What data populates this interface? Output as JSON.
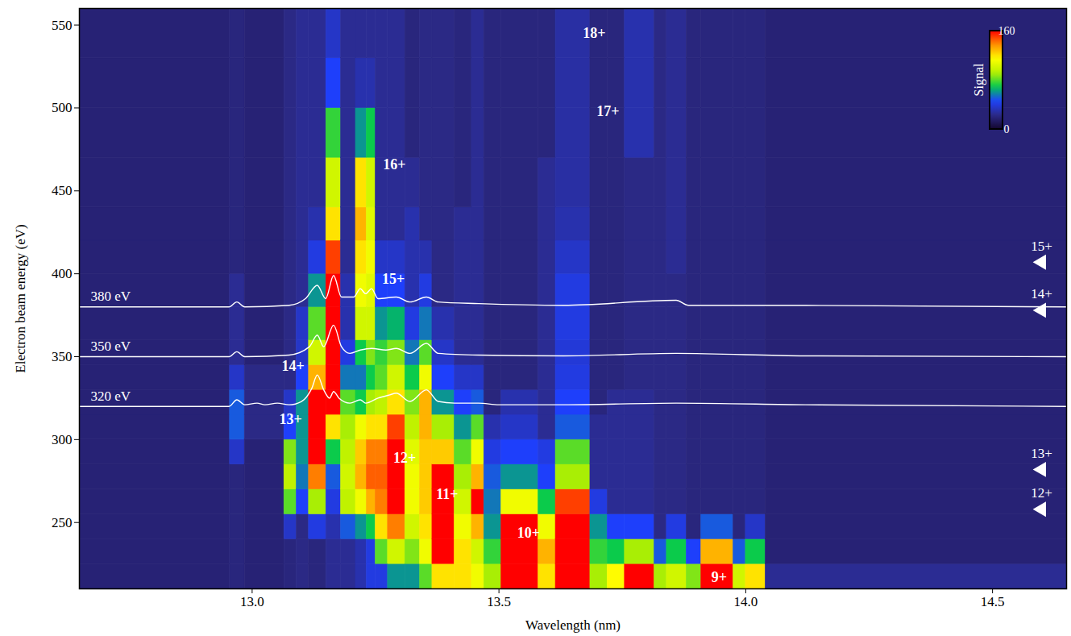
{
  "chart_data": {
    "type": "heatmap",
    "xlabel": "Wavelength (nm)",
    "ylabel": "Electron beam energy (eV)",
    "xlim": [
      12.65,
      14.65
    ],
    "ylim": [
      210,
      560
    ],
    "xticks": [
      {
        "value": 13,
        "label": "13.0"
      },
      13.5,
      {
        "value": 14,
        "label": "14.0"
      },
      14.5
    ],
    "yticks": [
      250,
      300,
      350,
      400,
      450,
      500,
      550
    ],
    "x_edges": [
      12.65,
      12.955,
      12.985,
      13.065,
      13.09,
      13.115,
      13.15,
      13.18,
      13.21,
      13.232,
      13.25,
      13.275,
      13.31,
      13.34,
      13.365,
      13.41,
      13.445,
      13.47,
      13.505,
      13.58,
      13.615,
      13.685,
      13.72,
      13.755,
      13.815,
      13.84,
      13.88,
      13.91,
      13.975,
      14.0,
      14.04,
      14.65
    ],
    "y_edges": [
      210,
      225,
      240,
      255,
      270,
      285,
      300,
      315,
      330,
      345,
      360,
      380,
      400,
      420,
      440,
      470,
      500,
      530,
      560
    ],
    "values": [
      [
        18,
        18,
        18,
        18,
        18,
        18,
        18,
        18,
        18,
        18,
        18,
        18,
        18,
        18,
        18,
        18,
        18,
        18
      ],
      [
        20,
        20,
        20,
        20,
        20,
        35,
        50,
        50,
        35,
        25,
        25,
        25,
        20,
        20,
        20,
        20,
        20,
        20
      ],
      [
        18,
        18,
        18,
        18,
        18,
        18,
        22,
        22,
        22,
        18,
        18,
        18,
        18,
        18,
        18,
        18,
        18,
        18
      ],
      [
        20,
        20,
        35,
        80,
        95,
        85,
        45,
        35,
        22,
        22,
        22,
        22,
        22,
        22,
        22,
        22,
        22,
        22
      ],
      [
        22,
        22,
        22,
        45,
        55,
        60,
        60,
        60,
        45,
        35,
        35,
        25,
        25,
        25,
        25,
        25,
        25,
        25
      ],
      [
        20,
        20,
        40,
        90,
        140,
        165,
        170,
        170,
        130,
        100,
        80,
        60,
        40,
        30,
        25,
        25,
        25,
        25
      ],
      [
        25,
        25,
        30,
        40,
        50,
        70,
        120,
        160,
        170,
        175,
        175,
        165,
        150,
        120,
        100,
        75,
        45,
        35
      ],
      [
        25,
        25,
        50,
        95,
        100,
        95,
        90,
        80,
        55,
        40,
        30,
        30,
        25,
        25,
        25,
        25,
        25,
        25
      ],
      [
        30,
        30,
        60,
        110,
        130,
        125,
        110,
        70,
        55,
        70,
        100,
        110,
        120,
        130,
        120,
        60,
        30,
        25
      ],
      [
        40,
        40,
        70,
        130,
        145,
        140,
        120,
        90,
        70,
        85,
        100,
        105,
        110,
        105,
        100,
        70,
        30,
        25
      ],
      [
        40,
        80,
        120,
        140,
        145,
        140,
        120,
        95,
        80,
        75,
        60,
        45,
        35,
        25,
        25,
        25,
        25,
        25
      ],
      [
        60,
        100,
        140,
        175,
        180,
        175,
        150,
        120,
        100,
        85,
        65,
        45,
        35,
        25,
        25,
        25,
        25,
        25
      ],
      [
        60,
        85,
        100,
        110,
        110,
        105,
        95,
        85,
        70,
        55,
        40,
        30,
        30,
        30,
        25,
        20,
        20,
        20
      ],
      [
        80,
        110,
        120,
        125,
        125,
        125,
        130,
        130,
        110,
        80,
        55,
        40,
        30,
        22,
        22,
        22,
        22,
        22
      ],
      [
        120,
        160,
        175,
        175,
        165,
        125,
        90,
        60,
        45,
        35,
        30,
        22,
        22,
        22,
        22,
        22,
        22,
        22
      ],
      [
        120,
        120,
        110,
        100,
        90,
        80,
        60,
        45,
        35,
        25,
        25,
        25,
        25,
        25,
        20,
        20,
        20,
        20
      ],
      [
        110,
        100,
        130,
        165,
        130,
        110,
        80,
        50,
        35,
        25,
        25,
        25,
        25,
        25,
        25,
        25,
        25,
        25
      ],
      [
        90,
        75,
        60,
        55,
        50,
        40,
        30,
        20,
        20,
        20,
        20,
        20,
        20,
        20,
        20,
        20,
        20,
        20
      ],
      [
        160,
        175,
        170,
        110,
        60,
        45,
        35,
        30,
        20,
        20,
        20,
        20,
        20,
        20,
        20,
        20,
        20,
        20
      ],
      [
        120,
        130,
        110,
        70,
        45,
        40,
        25,
        25,
        25,
        25,
        25,
        25,
        25,
        25,
        25,
        20,
        20,
        20
      ],
      [
        165,
        180,
        180,
        150,
        90,
        80,
        50,
        45,
        40,
        38,
        40,
        40,
        35,
        30,
        28,
        28,
        28,
        28
      ],
      [
        90,
        75,
        60,
        40,
        25,
        25,
        25,
        20,
        20,
        20,
        20,
        20,
        20,
        20,
        20,
        20,
        20,
        20
      ],
      [
        115,
        70,
        45,
        25,
        25,
        25,
        25,
        25,
        20,
        20,
        20,
        20,
        20,
        20,
        20,
        20,
        20,
        20
      ],
      [
        170,
        90,
        45,
        25,
        25,
        25,
        25,
        25,
        22,
        22,
        22,
        22,
        22,
        22,
        22,
        30,
        30,
        30
      ],
      [
        90,
        50,
        22,
        22,
        22,
        22,
        22,
        22,
        22,
        22,
        22,
        22,
        22,
        22,
        22,
        22,
        22,
        22
      ],
      [
        100,
        70,
        40,
        22,
        22,
        22,
        22,
        22,
        22,
        22,
        22,
        22,
        25,
        25,
        25,
        25,
        25,
        25
      ],
      [
        85,
        45,
        20,
        20,
        20,
        20,
        20,
        20,
        20,
        20,
        20,
        20,
        20,
        20,
        20,
        20,
        20,
        20
      ],
      [
        175,
        130,
        50,
        20,
        20,
        20,
        20,
        20,
        20,
        20,
        20,
        20,
        20,
        20,
        20,
        20,
        20,
        20
      ],
      [
        100,
        50,
        20,
        20,
        20,
        20,
        20,
        20,
        20,
        20,
        20,
        20,
        20,
        20,
        20,
        20,
        20,
        20
      ],
      [
        120,
        70,
        35,
        20,
        20,
        20,
        20,
        20,
        20,
        20,
        20,
        20,
        20,
        20,
        20,
        20,
        20,
        20
      ],
      [
        25,
        18,
        18,
        18,
        18,
        18,
        18,
        18,
        18,
        18,
        18,
        18,
        18,
        18,
        18,
        18,
        18,
        18
      ]
    ],
    "colorbar": {
      "label": "Signal",
      "range": [
        0,
        160
      ],
      "ticks": [
        0,
        160
      ]
    },
    "series": [
      {
        "name": "380 eV",
        "color": "#ffffff",
        "x": [
          12.65,
          12.953,
          12.969,
          12.985,
          13.075,
          13.108,
          13.132,
          13.149,
          13.165,
          13.181,
          13.206,
          13.219,
          13.23,
          13.242,
          13.255,
          13.292,
          13.32,
          13.353,
          13.377,
          13.459,
          13.631,
          13.859,
          13.884,
          14.121,
          14.65
        ],
        "y": [
          380,
          380,
          383,
          380,
          381,
          385,
          393,
          385,
          399,
          386,
          386,
          391,
          388,
          391,
          385,
          386,
          383,
          386,
          383,
          382,
          381,
          384,
          381,
          381,
          380
        ]
      },
      {
        "name": "350 eV",
        "color": "#ffffff",
        "x": [
          12.65,
          12.953,
          12.969,
          12.985,
          13.075,
          13.116,
          13.132,
          13.145,
          13.165,
          13.181,
          13.198,
          13.219,
          13.242,
          13.271,
          13.292,
          13.32,
          13.353,
          13.377,
          13.459,
          13.631,
          13.859,
          14.121,
          14.65
        ],
        "y": [
          350,
          350,
          353,
          350,
          351,
          356,
          363,
          356,
          369,
          356,
          352,
          354,
          355,
          354,
          355,
          352,
          358,
          352,
          351,
          350.5,
          352,
          350.5,
          350
        ]
      },
      {
        "name": "320 eV",
        "color": "#ffffff",
        "x": [
          12.65,
          12.953,
          12.969,
          12.985,
          13.01,
          13.026,
          13.051,
          13.075,
          13.1,
          13.121,
          13.132,
          13.145,
          13.157,
          13.165,
          13.176,
          13.198,
          13.219,
          13.23,
          13.255,
          13.279,
          13.292,
          13.32,
          13.353,
          13.377,
          13.41,
          13.459,
          13.5,
          13.631,
          13.859,
          14.121,
          14.65
        ],
        "y": [
          320,
          320,
          324,
          321,
          322,
          321,
          322,
          321,
          323,
          331,
          339,
          330,
          325,
          329,
          325,
          322,
          324,
          322,
          325,
          327,
          328,
          323,
          330,
          323,
          322,
          322,
          321,
          321,
          322,
          321,
          320
        ]
      }
    ],
    "annotations": [
      {
        "text": "18+",
        "x": 13.693,
        "y": 545
      },
      {
        "text": "17+",
        "x": 13.721,
        "y": 498
      },
      {
        "text": "16+",
        "x": 13.288,
        "y": 466
      },
      {
        "text": "15+",
        "x": 13.286,
        "y": 397
      },
      {
        "text": "14+",
        "x": 13.083,
        "y": 344.5
      },
      {
        "text": "13+",
        "x": 13.078,
        "y": 312
      },
      {
        "text": "12+",
        "x": 13.309,
        "y": 289
      },
      {
        "text": "11+",
        "x": 13.395,
        "y": 267
      },
      {
        "text": "10+",
        "x": 13.56,
        "y": 243.5
      },
      {
        "text": "9+",
        "x": 13.946,
        "y": 217
      }
    ],
    "thresholds": [
      {
        "label": "15+",
        "energy": 407
      },
      {
        "label": "14+",
        "energy": 378
      },
      {
        "label": "13+",
        "energy": 282
      },
      {
        "label": "12+",
        "energy": 258
      }
    ]
  }
}
